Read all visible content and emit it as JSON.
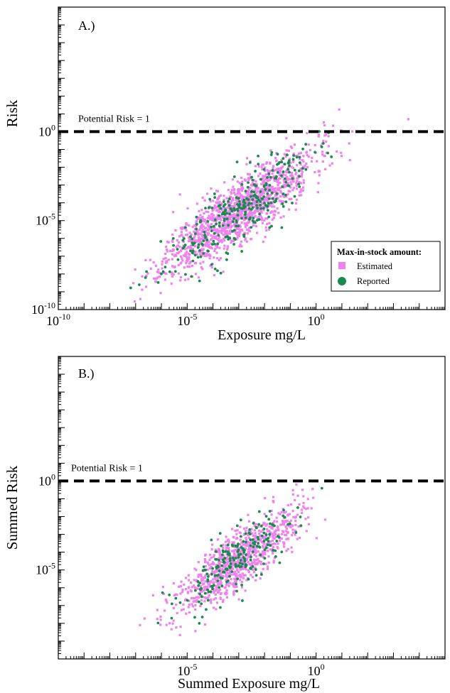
{
  "chart_data": [
    {
      "panel_label": "A.)",
      "type": "scatter",
      "xlabel": "Exposure mg/L",
      "ylabel": "Risk",
      "x_scale": "log",
      "y_scale": "log",
      "xlim": [
        1e-10,
        100000
      ],
      "ylim": [
        1e-10,
        10000000
      ],
      "x_ticklabels": [
        {
          "base": "10",
          "exp": "-10",
          "value": 1e-10
        },
        {
          "base": "10",
          "exp": "-5",
          "value": 1e-05
        },
        {
          "base": "10",
          "exp": "0",
          "value": 1
        }
      ],
      "y_ticklabels": [
        {
          "base": "10",
          "exp": "-10",
          "value": 1e-10
        },
        {
          "base": "10",
          "exp": "-5",
          "value": 1e-05
        },
        {
          "base": "10",
          "exp": "0",
          "value": 1
        }
      ],
      "reference_line": {
        "y": 1,
        "label": "Potential Risk = 1",
        "style": "dashed"
      },
      "legend": {
        "title": "Max-in-stock amount:",
        "placement": "lower-right",
        "entries": [
          "Estimated",
          "Reported"
        ]
      },
      "series": [
        {
          "name": "Estimated",
          "color": "#ee82ee",
          "marker": "square",
          "cloud": {
            "n": 1400,
            "x_center": 0.001,
            "x_spread_decades": 2.3,
            "y_offset_decades": -1.5,
            "y_spread_decades": 1.4,
            "seed": 11
          }
        },
        {
          "name": "Reported",
          "color": "#1a8a4e",
          "marker": "circle",
          "cloud": {
            "n": 300,
            "x_center": 0.001,
            "x_spread_decades": 2.3,
            "y_offset_decades": -1.5,
            "y_spread_decades": 1.5,
            "seed": 23
          }
        }
      ]
    },
    {
      "panel_label": "B.)",
      "type": "scatter",
      "xlabel": "Summed Exposure mg/L",
      "ylabel": "Summed Risk",
      "x_scale": "log",
      "y_scale": "log",
      "xlim": [
        1e-10,
        100000
      ],
      "ylim": [
        1e-10,
        10000000
      ],
      "x_ticklabels": [
        {
          "base": "10",
          "exp": "-5",
          "value": 1e-05
        },
        {
          "base": "10",
          "exp": "0",
          "value": 1
        }
      ],
      "y_ticklabels": [
        {
          "base": "10",
          "exp": "-5",
          "value": 1e-05
        },
        {
          "base": "10",
          "exp": "0",
          "value": 1
        }
      ],
      "reference_line": {
        "y": 1,
        "label": "Potential Risk = 1",
        "style": "dashed"
      },
      "series": [
        {
          "name": "Estimated",
          "color": "#ee82ee",
          "marker": "square",
          "cloud": {
            "n": 900,
            "x_center": 0.001,
            "x_spread_decades": 1.9,
            "y_offset_decades": -1.4,
            "y_spread_decades": 1.3,
            "seed": 37
          }
        },
        {
          "name": "Reported",
          "color": "#1a8a4e",
          "marker": "circle",
          "cloud": {
            "n": 220,
            "x_center": 0.001,
            "x_spread_decades": 1.9,
            "y_offset_decades": -1.4,
            "y_spread_decades": 1.4,
            "seed": 53
          }
        }
      ]
    }
  ]
}
